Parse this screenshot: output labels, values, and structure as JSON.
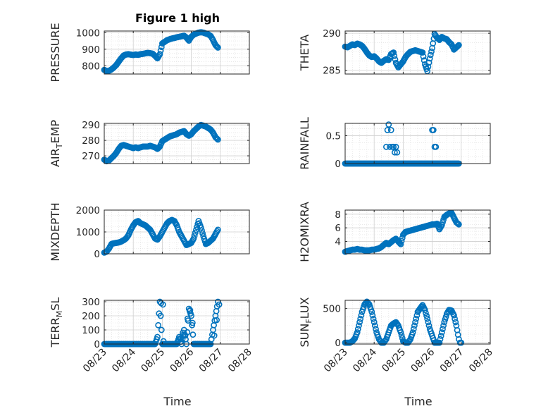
{
  "figure": {
    "title": "Figure 1 high",
    "xlabel": "Time",
    "marker_color": "#0072BD",
    "x_ticks": [
      "08/23",
      "08/24",
      "08/25",
      "08/26",
      "08/27",
      "08/28"
    ]
  },
  "chart_data": [
    {
      "type": "scatter",
      "ylabel": "PRESSURE",
      "ylim": [
        750,
        1010
      ],
      "yticks": [
        800,
        900,
        1000
      ],
      "x": [
        "08/23 00:00",
        "08/23 02:00",
        "08/23 04:00",
        "08/23 06:00",
        "08/23 08:00",
        "08/23 10:00",
        "08/23 12:00",
        "08/23 14:00",
        "08/23 16:00",
        "08/23 18:00",
        "08/23 20:00",
        "08/23 22:00",
        "08/24 00:00",
        "08/24 02:00",
        "08/24 04:00",
        "08/24 06:00",
        "08/24 08:00",
        "08/24 10:00",
        "08/24 12:00",
        "08/24 14:00",
        "08/24 16:00",
        "08/24 18:00",
        "08/24 20:00",
        "08/24 22:00",
        "08/25 00:00",
        "08/25 02:00",
        "08/25 04:00",
        "08/25 06:00",
        "08/25 08:00",
        "08/25 10:00",
        "08/25 12:00",
        "08/25 14:00",
        "08/25 16:00",
        "08/25 18:00",
        "08/25 20:00",
        "08/25 22:00",
        "08/26 00:00",
        "08/26 02:00",
        "08/26 04:00",
        "08/26 06:00",
        "08/26 08:00",
        "08/26 10:00",
        "08/26 12:00",
        "08/26 14:00",
        "08/26 16:00",
        "08/26 18:00",
        "08/26 20:00",
        "08/26 22:00"
      ],
      "y": [
        775,
        768,
        770,
        778,
        790,
        805,
        825,
        845,
        862,
        868,
        870,
        867,
        865,
        868,
        866,
        870,
        872,
        875,
        878,
        876,
        873,
        860,
        845,
        870,
        935,
        945,
        955,
        960,
        965,
        968,
        972,
        975,
        978,
        982,
        970,
        952,
        975,
        988,
        995,
        1000,
        1003,
        1000,
        995,
        990,
        980,
        955,
        925,
        910
      ]
    },
    {
      "type": "scatter",
      "ylabel": "THETA",
      "ylim": [
        284.5,
        290.3
      ],
      "yticks": [
        285,
        290
      ],
      "x": [
        "08/23 00:00",
        "08/23 02:00",
        "08/23 04:00",
        "08/23 06:00",
        "08/23 08:00",
        "08/23 10:00",
        "08/23 12:00",
        "08/23 14:00",
        "08/23 16:00",
        "08/23 18:00",
        "08/23 20:00",
        "08/23 22:00",
        "08/24 00:00",
        "08/24 02:00",
        "08/24 04:00",
        "08/24 06:00",
        "08/24 08:00",
        "08/24 10:00",
        "08/24 12:00",
        "08/24 14:00",
        "08/24 16:00",
        "08/24 18:00",
        "08/24 20:00",
        "08/24 22:00",
        "08/25 00:00",
        "08/25 02:00",
        "08/25 04:00",
        "08/25 06:00",
        "08/25 08:00",
        "08/25 10:00",
        "08/25 12:00",
        "08/25 14:00",
        "08/25 16:00",
        "08/25 18:00",
        "08/25 20:00",
        "08/25 22:00",
        "08/26 00:00",
        "08/26 02:00",
        "08/26 04:00",
        "08/26 06:00",
        "08/26 08:00",
        "08/26 10:00",
        "08/26 12:00",
        "08/26 14:00",
        "08/26 16:00",
        "08/26 18:00",
        "08/26 20:00",
        "08/26 22:00"
      ],
      "y": [
        288.2,
        288.1,
        288.3,
        288.5,
        288.4,
        288.6,
        288.5,
        288.3,
        287.9,
        287.4,
        287.0,
        286.8,
        286.9,
        286.6,
        286.2,
        286.0,
        286.3,
        286.5,
        286.4,
        287.2,
        287.4,
        286.0,
        285.4,
        285.8,
        286.2,
        286.8,
        287.2,
        287.5,
        287.6,
        287.7,
        287.6,
        287.5,
        287.4,
        285.8,
        284.9,
        286.6,
        288.0,
        289.9,
        289.4,
        289.1,
        289.5,
        289.3,
        289.2,
        288.8,
        288.5,
        287.8,
        288.1,
        288.4
      ]
    },
    {
      "type": "scatter",
      "ylabel": "AIR_TEMP",
      "ylim": [
        265,
        291
      ],
      "yticks": [
        270,
        280,
        290
      ],
      "x": [
        "08/23 00:00",
        "08/23 02:00",
        "08/23 04:00",
        "08/23 06:00",
        "08/23 08:00",
        "08/23 10:00",
        "08/23 12:00",
        "08/23 14:00",
        "08/23 16:00",
        "08/23 18:00",
        "08/23 20:00",
        "08/23 22:00",
        "08/24 00:00",
        "08/24 02:00",
        "08/24 04:00",
        "08/24 06:00",
        "08/24 08:00",
        "08/24 10:00",
        "08/24 12:00",
        "08/24 14:00",
        "08/24 16:00",
        "08/24 18:00",
        "08/24 20:00",
        "08/24 22:00",
        "08/25 00:00",
        "08/25 02:00",
        "08/25 04:00",
        "08/25 06:00",
        "08/25 08:00",
        "08/25 10:00",
        "08/25 12:00",
        "08/25 14:00",
        "08/25 16:00",
        "08/25 18:00",
        "08/25 20:00",
        "08/25 22:00",
        "08/26 00:00",
        "08/26 02:00",
        "08/26 04:00",
        "08/26 06:00",
        "08/26 08:00",
        "08/26 10:00",
        "08/26 12:00",
        "08/26 14:00",
        "08/26 16:00",
        "08/26 18:00",
        "08/26 20:00",
        "08/26 22:00"
      ],
      "y": [
        267.5,
        266.5,
        267.0,
        268.5,
        270.0,
        272.0,
        274.5,
        276.5,
        277.0,
        276.5,
        276.0,
        275.5,
        275.0,
        275.5,
        275.0,
        275.5,
        276.0,
        276.0,
        276.0,
        276.5,
        276.0,
        275.5,
        274.5,
        276.0,
        279.5,
        280.5,
        281.5,
        282.5,
        283.0,
        283.5,
        284.0,
        285.0,
        285.5,
        286.0,
        284.0,
        283.0,
        284.0,
        286.0,
        287.5,
        289.0,
        290.0,
        289.5,
        289.0,
        288.0,
        287.0,
        285.0,
        282.0,
        280.5
      ]
    },
    {
      "type": "scatter",
      "ylabel": "RAINFALL",
      "ylim": [
        0,
        0.72
      ],
      "yticks": [
        0,
        0.5
      ],
      "x": [
        "08/23 00:00",
        "08/23 02:00",
        "08/23 04:00",
        "08/23 06:00",
        "08/23 08:00",
        "08/23 10:00",
        "08/23 12:00",
        "08/23 14:00",
        "08/23 16:00",
        "08/23 18:00",
        "08/23 20:00",
        "08/23 22:00",
        "08/24 00:00",
        "08/24 02:00",
        "08/24 04:00",
        "08/24 06:00",
        "08/24 08:00",
        "08/24 10:00",
        "08/24 12:00",
        "08/24 14:00",
        "08/24 16:00",
        "08/24 18:00",
        "08/24 20:00",
        "08/24 22:00",
        "08/25 00:00",
        "08/25 02:00",
        "08/25 04:00",
        "08/25 06:00",
        "08/25 08:00",
        "08/25 10:00",
        "08/25 12:00",
        "08/25 14:00",
        "08/25 16:00",
        "08/25 18:00",
        "08/25 20:00",
        "08/25 22:00",
        "08/26 00:00",
        "08/26 02:00",
        "08/26 04:00",
        "08/26 06:00",
        "08/26 08:00",
        "08/26 10:00",
        "08/26 12:00",
        "08/26 14:00",
        "08/26 16:00",
        "08/26 18:00",
        "08/26 20:00",
        "08/26 22:00"
      ],
      "y": [
        0,
        0,
        0,
        0,
        0,
        0,
        0,
        0,
        0,
        0,
        0,
        0,
        0,
        0,
        0,
        0,
        0,
        0,
        0,
        0,
        0,
        0,
        0,
        0,
        0,
        0,
        0,
        0,
        0,
        0,
        0,
        0,
        0,
        0,
        0,
        0,
        0,
        0,
        0,
        0,
        0,
        0,
        0,
        0,
        0,
        0,
        0,
        0
      ],
      "x_extra": [
        "08/24 10:00",
        "08/24 11:00",
        "08/24 12:00",
        "08/24 13:00",
        "08/24 14:00",
        "08/24 15:00",
        "08/24 16:00",
        "08/24 17:00",
        "08/24 18:00",
        "08/24 19:00",
        "08/26 00:00",
        "08/26 01:00",
        "08/26 02:00",
        "08/26 03:00"
      ],
      "y_extra": [
        0.3,
        0.6,
        0.7,
        0.3,
        0.6,
        0.3,
        0.3,
        0.2,
        0.3,
        0.2,
        0.6,
        0.6,
        0.3,
        0.3
      ]
    },
    {
      "type": "scatter",
      "ylabel": "MIXDEPTH",
      "ylim": [
        0,
        2000
      ],
      "yticks": [
        0,
        1000,
        2000
      ],
      "x": [
        "08/23 00:00",
        "08/23 02:00",
        "08/23 04:00",
        "08/23 06:00",
        "08/23 08:00",
        "08/23 10:00",
        "08/23 12:00",
        "08/23 14:00",
        "08/23 16:00",
        "08/23 18:00",
        "08/23 20:00",
        "08/23 22:00",
        "08/24 00:00",
        "08/24 02:00",
        "08/24 04:00",
        "08/24 06:00",
        "08/24 08:00",
        "08/24 10:00",
        "08/24 12:00",
        "08/24 14:00",
        "08/24 16:00",
        "08/24 18:00",
        "08/24 20:00",
        "08/24 22:00",
        "08/25 00:00",
        "08/25 02:00",
        "08/25 04:00",
        "08/25 06:00",
        "08/25 08:00",
        "08/25 10:00",
        "08/25 12:00",
        "08/25 14:00",
        "08/25 16:00",
        "08/25 18:00",
        "08/25 20:00",
        "08/25 22:00",
        "08/26 00:00",
        "08/26 02:00",
        "08/26 04:00",
        "08/26 06:00",
        "08/26 08:00",
        "08/26 10:00",
        "08/26 12:00",
        "08/26 14:00",
        "08/26 16:00",
        "08/26 18:00",
        "08/26 20:00",
        "08/26 22:00"
      ],
      "y": [
        50,
        100,
        250,
        450,
        480,
        500,
        520,
        560,
        620,
        700,
        850,
        1100,
        1300,
        1450,
        1500,
        1400,
        1350,
        1300,
        1200,
        1100,
        900,
        700,
        650,
        800,
        1000,
        1200,
        1400,
        1500,
        1550,
        1500,
        1300,
        1000,
        800,
        600,
        400,
        450,
        500,
        700,
        1100,
        1500,
        1200,
        800,
        450,
        500,
        600,
        700,
        900,
        1100
      ]
    },
    {
      "type": "scatter",
      "ylabel": "H2OMIXRA",
      "ylim": [
        2.2,
        8.6
      ],
      "yticks": [
        4,
        6,
        8
      ],
      "x": [
        "08/23 00:00",
        "08/23 02:00",
        "08/23 04:00",
        "08/23 06:00",
        "08/23 08:00",
        "08/23 10:00",
        "08/23 12:00",
        "08/23 14:00",
        "08/23 16:00",
        "08/23 18:00",
        "08/23 20:00",
        "08/23 22:00",
        "08/24 00:00",
        "08/24 02:00",
        "08/24 04:00",
        "08/24 06:00",
        "08/24 08:00",
        "08/24 10:00",
        "08/24 12:00",
        "08/24 14:00",
        "08/24 16:00",
        "08/24 18:00",
        "08/24 20:00",
        "08/24 22:00",
        "08/25 00:00",
        "08/25 02:00",
        "08/25 04:00",
        "08/25 06:00",
        "08/25 08:00",
        "08/25 10:00",
        "08/25 12:00",
        "08/25 14:00",
        "08/25 16:00",
        "08/25 18:00",
        "08/25 20:00",
        "08/25 22:00",
        "08/26 00:00",
        "08/26 02:00",
        "08/26 04:00",
        "08/26 06:00",
        "08/26 08:00",
        "08/26 10:00",
        "08/26 12:00",
        "08/26 14:00",
        "08/26 16:00",
        "08/26 18:00",
        "08/26 20:00",
        "08/26 22:00"
      ],
      "y": [
        2.5,
        2.6,
        2.7,
        2.8,
        2.8,
        2.9,
        2.8,
        2.8,
        2.7,
        2.7,
        2.7,
        2.8,
        2.8,
        2.9,
        3.0,
        3.2,
        3.5,
        3.8,
        3.6,
        3.9,
        4.2,
        4.4,
        4.0,
        3.6,
        5.0,
        5.4,
        5.5,
        5.6,
        5.7,
        5.8,
        5.9,
        6.0,
        6.1,
        6.2,
        6.3,
        6.4,
        6.5,
        6.5,
        6.6,
        5.8,
        6.4,
        7.6,
        7.9,
        8.1,
        8.2,
        7.5,
        6.8,
        6.5
      ]
    },
    {
      "type": "scatter",
      "ylabel": "TERR_MSL",
      "ylim": [
        0,
        310
      ],
      "yticks": [
        0,
        100,
        200,
        300
      ],
      "x": [
        "08/23 00:00",
        "08/23 02:00",
        "08/23 04:00",
        "08/23 06:00",
        "08/23 08:00",
        "08/23 10:00",
        "08/23 12:00",
        "08/23 14:00",
        "08/23 16:00",
        "08/23 18:00",
        "08/23 20:00",
        "08/23 22:00",
        "08/24 00:00",
        "08/24 02:00",
        "08/24 04:00",
        "08/24 06:00",
        "08/24 08:00",
        "08/24 10:00",
        "08/24 12:00",
        "08/24 14:00",
        "08/24 16:00",
        "08/24 18:00",
        "08/24 20:00",
        "08/24 22:00",
        "08/25 00:00",
        "08/25 02:00",
        "08/25 04:00",
        "08/25 06:00",
        "08/25 08:00",
        "08/25 10:00",
        "08/25 12:00",
        "08/25 14:00",
        "08/25 16:00",
        "08/25 18:00",
        "08/25 20:00",
        "08/25 22:00",
        "08/26 00:00",
        "08/26 02:00",
        "08/26 04:00",
        "08/26 06:00",
        "08/26 08:00",
        "08/26 10:00",
        "08/26 12:00",
        "08/26 14:00",
        "08/26 16:00",
        "08/26 18:00",
        "08/26 20:00",
        "08/26 22:00"
      ],
      "y": [
        0,
        0,
        0,
        0,
        0,
        0,
        0,
        0,
        0,
        0,
        0,
        0,
        0,
        0,
        0,
        0,
        0,
        0,
        0,
        0,
        0,
        0,
        50,
        300,
        0,
        0,
        0,
        0,
        0,
        0,
        0,
        50,
        0,
        100,
        0,
        250,
        200,
        0,
        0,
        0,
        0,
        0,
        0,
        0,
        0,
        100,
        200,
        300
      ],
      "x_extra": [
        "08/24 23:00",
        "08/25 00:30",
        "08/25 01:00",
        "08/25 13:00",
        "08/25 15:00",
        "08/25 17:00",
        "08/25 19:00",
        "08/25 21:00",
        "08/25 23:00",
        "08/26 01:00",
        "08/26 19:00",
        "08/26 21:00",
        "08/26 23:00"
      ],
      "y_extra": [
        290,
        280,
        20,
        20,
        40,
        80,
        60,
        180,
        240,
        150,
        60,
        170,
        280
      ]
    },
    {
      "type": "scatter",
      "ylabel": "SUN_FLUX",
      "ylim": [
        -20,
        620
      ],
      "yticks": [
        0,
        500
      ],
      "x": [
        "08/23 00:00",
        "08/23 02:00",
        "08/23 04:00",
        "08/23 06:00",
        "08/23 08:00",
        "08/23 10:00",
        "08/23 12:00",
        "08/23 14:00",
        "08/23 16:00",
        "08/23 18:00",
        "08/23 20:00",
        "08/23 22:00",
        "08/24 00:00",
        "08/24 02:00",
        "08/24 04:00",
        "08/24 06:00",
        "08/24 08:00",
        "08/24 10:00",
        "08/24 12:00",
        "08/24 14:00",
        "08/24 16:00",
        "08/24 18:00",
        "08/24 20:00",
        "08/24 22:00",
        "08/25 00:00",
        "08/25 02:00",
        "08/25 04:00",
        "08/25 06:00",
        "08/25 08:00",
        "08/25 10:00",
        "08/25 12:00",
        "08/25 14:00",
        "08/25 16:00",
        "08/25 18:00",
        "08/25 20:00",
        "08/25 22:00",
        "08/26 00:00",
        "08/26 02:00",
        "08/26 04:00",
        "08/26 06:00",
        "08/26 08:00",
        "08/26 10:00",
        "08/26 12:00",
        "08/26 14:00",
        "08/26 16:00",
        "08/26 18:00",
        "08/26 20:00",
        "08/26 22:00"
      ],
      "y": [
        0,
        0,
        0,
        20,
        60,
        150,
        300,
        450,
        560,
        600,
        560,
        450,
        300,
        150,
        50,
        0,
        0,
        50,
        150,
        250,
        280,
        300,
        250,
        150,
        20,
        0,
        0,
        50,
        150,
        300,
        450,
        500,
        550,
        480,
        350,
        200,
        100,
        0,
        0,
        0,
        150,
        300,
        420,
        480,
        470,
        400,
        250,
        50
      ],
      "x_extra": [
        "08/26 23:00",
        "08/27 00:00"
      ],
      "y_extra": [
        0,
        0
      ]
    }
  ]
}
